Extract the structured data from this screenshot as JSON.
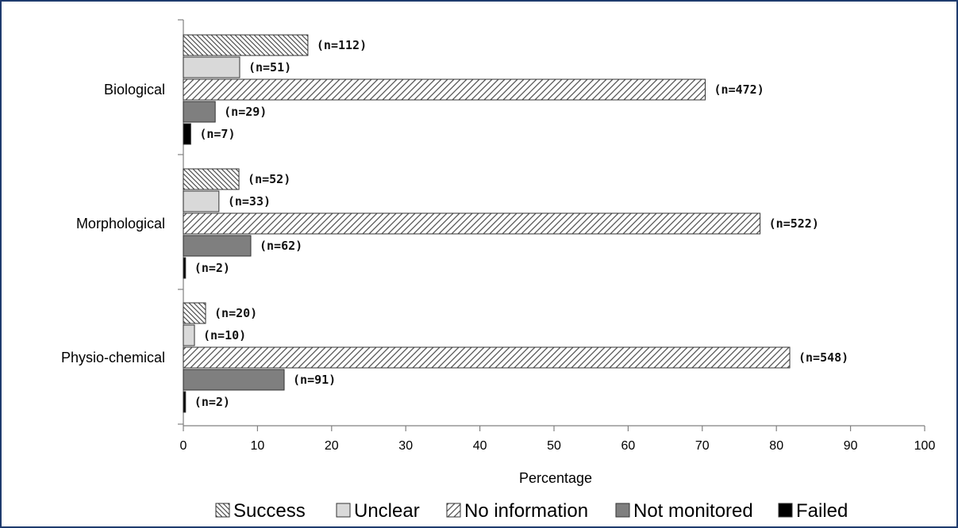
{
  "chart_data": {
    "type": "bar",
    "orientation": "horizontal",
    "title": "",
    "xlabel": "Percentage",
    "ylabel": "",
    "xlim": [
      0,
      100
    ],
    "x_ticks": [
      "0",
      "10",
      "20",
      "30",
      "40",
      "50",
      "60",
      "70",
      "80",
      "90",
      "100"
    ],
    "categories": [
      "Biological",
      "Morphological",
      "Physio-chemical"
    ],
    "series": [
      {
        "name": "Success",
        "values": [
          16.8,
          7.5,
          3.0
        ],
        "labels": [
          "(n=112)",
          "(n=52)",
          "(n=20)"
        ],
        "pattern": "hatch-back",
        "color": "#ffffff"
      },
      {
        "name": "Unclear",
        "values": [
          7.6,
          4.8,
          1.5
        ],
        "labels": [
          "(n=51)",
          "(n=33)",
          "(n=10)"
        ],
        "pattern": "solid",
        "color": "#d9d9d9"
      },
      {
        "name": "No information",
        "values": [
          70.4,
          77.8,
          81.8
        ],
        "labels": [
          "(n=472)",
          "(n=522)",
          "(n=548)"
        ],
        "pattern": "hatch-forward",
        "color": "#ffffff"
      },
      {
        "name": "Not monitored",
        "values": [
          4.3,
          9.1,
          13.6
        ],
        "labels": [
          "(n=29)",
          "(n=62)",
          "(n=91)"
        ],
        "pattern": "solid",
        "color": "#7f7f7f"
      },
      {
        "name": "Failed",
        "values": [
          1.0,
          0.3,
          0.3
        ],
        "labels": [
          "(n=7)",
          "(n=2)",
          "(n=2)"
        ],
        "pattern": "solid",
        "color": "#000000"
      }
    ],
    "legend_position": "bottom",
    "grid": false
  }
}
